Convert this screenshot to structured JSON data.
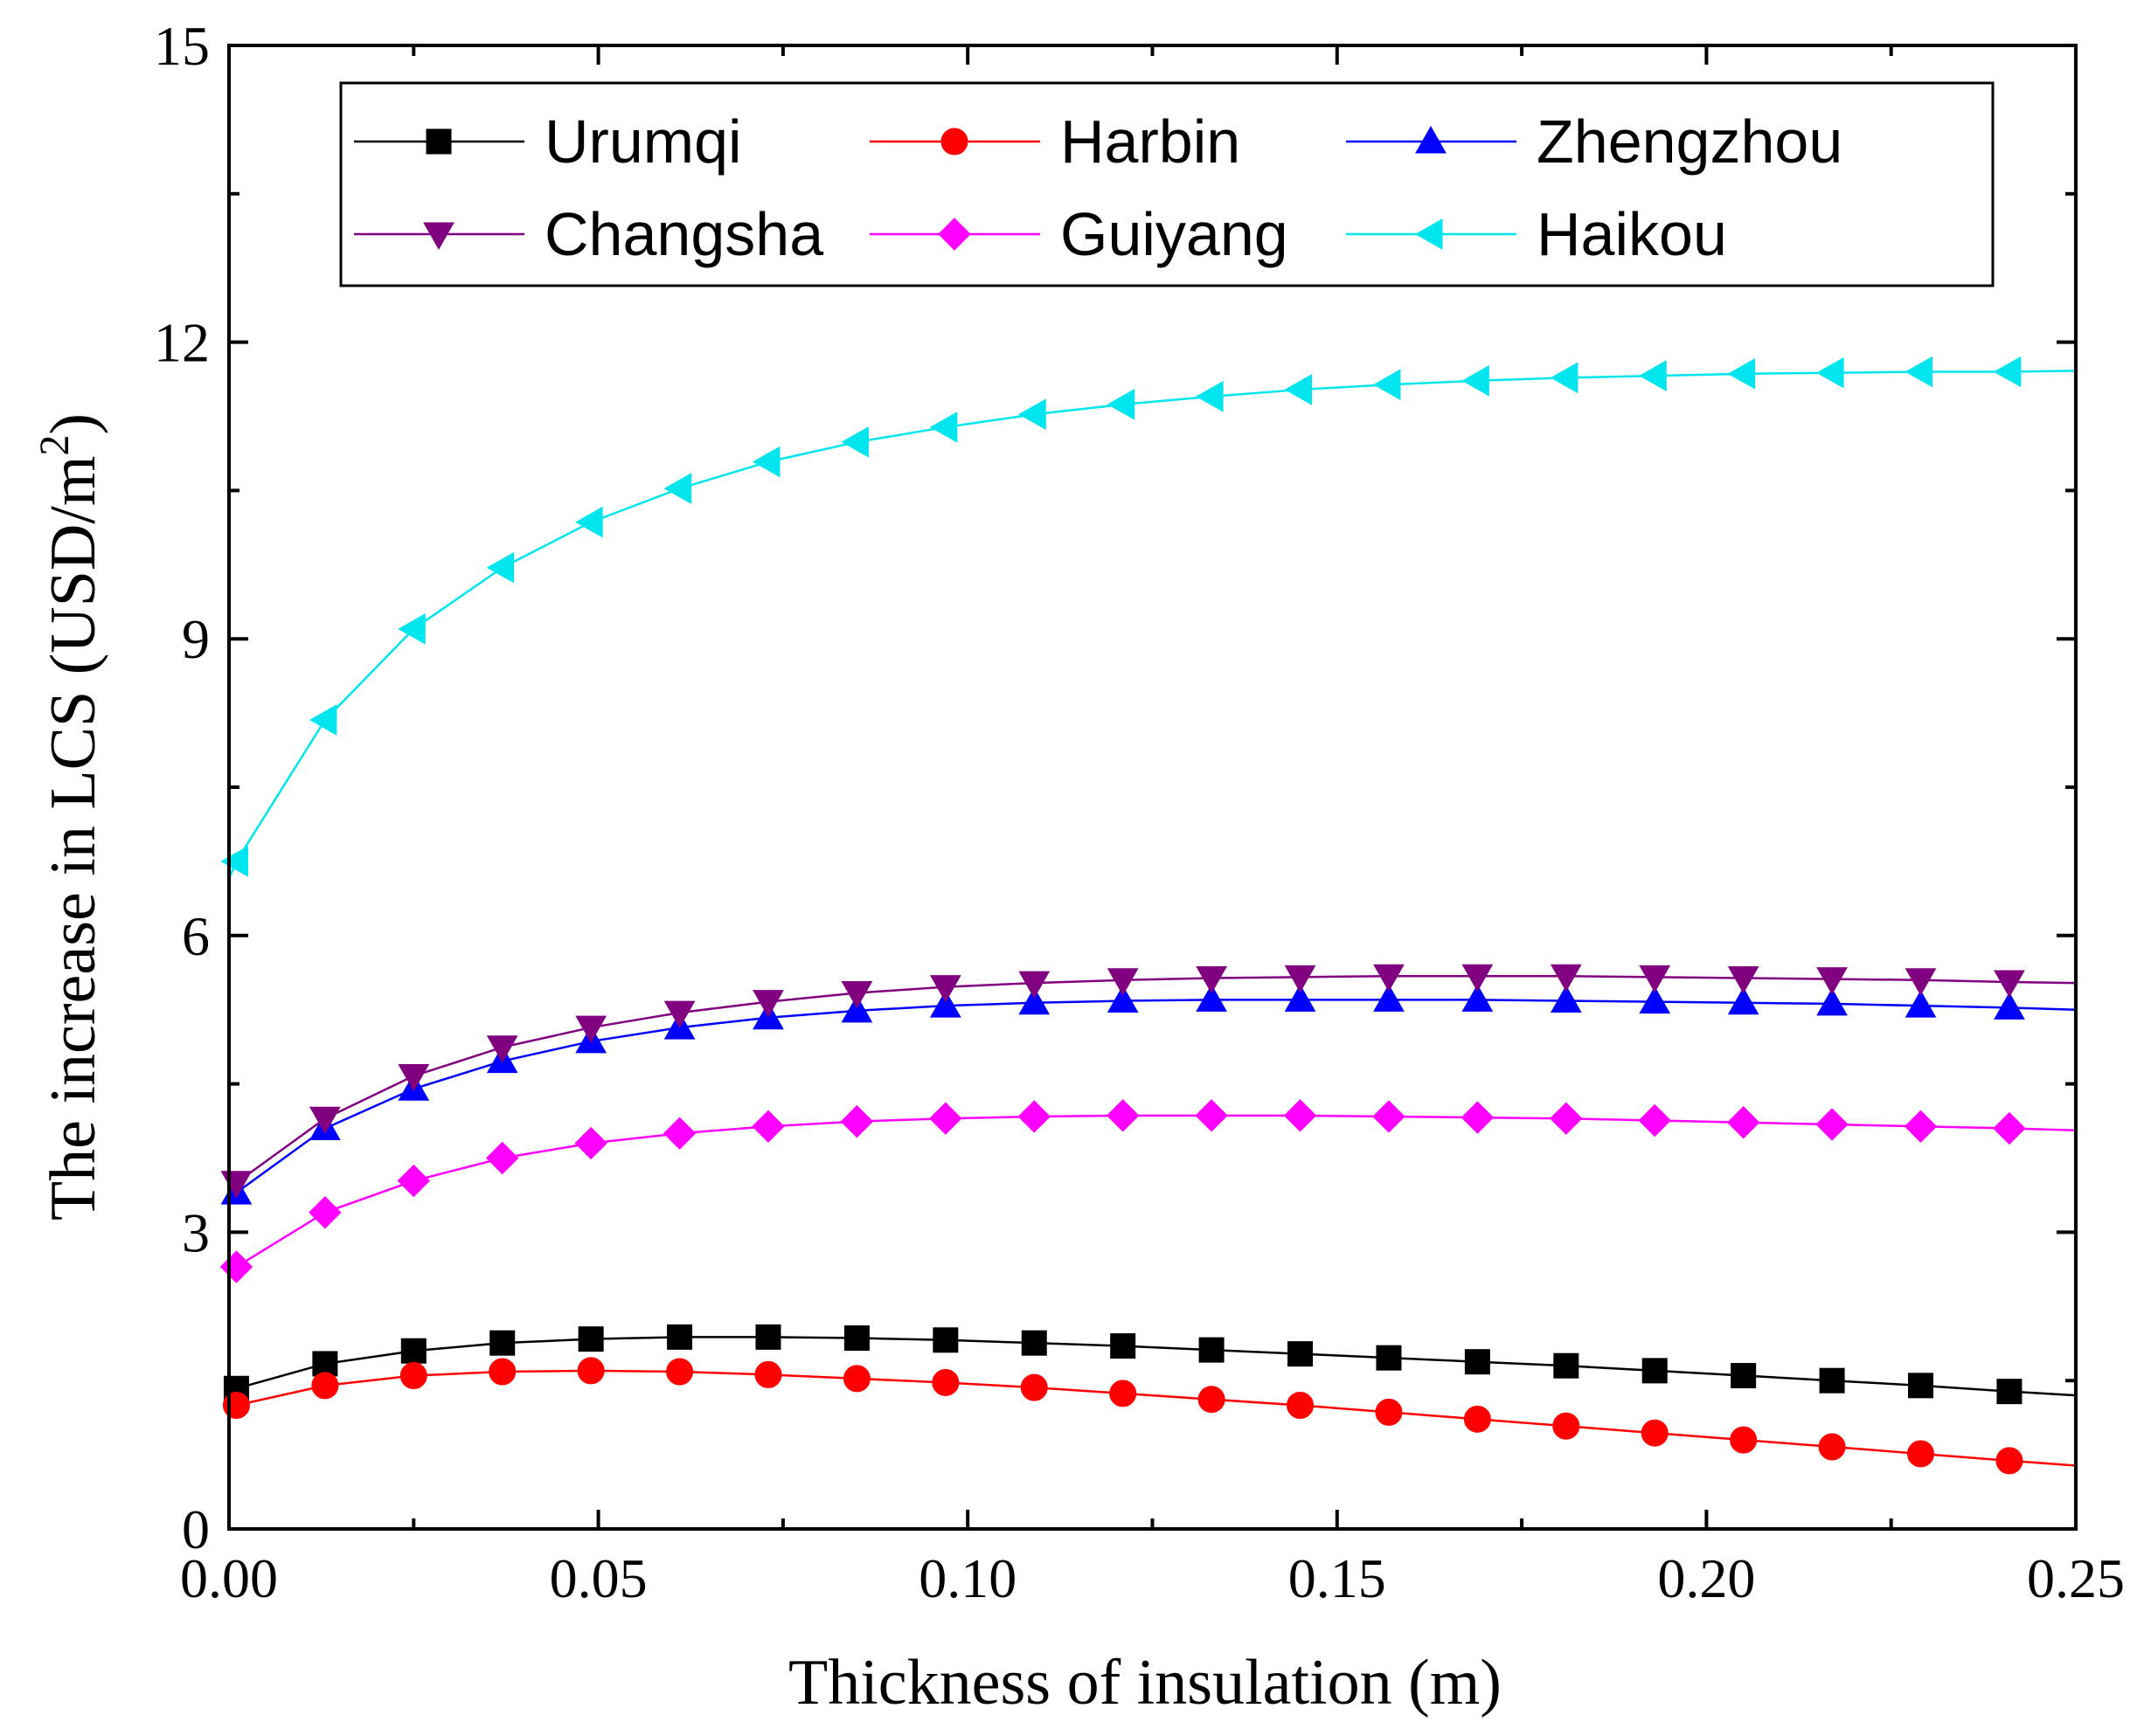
{
  "chart_data": {
    "type": "line",
    "title": "",
    "xlabel": "Thickness of insulation (m)",
    "ylabel": "The increase in LCS (USD/m",
    "ylabel_sup": "2",
    "ylabel_close": ")",
    "xlim": [
      0.0,
      0.25
    ],
    "ylim": [
      0,
      15
    ],
    "x_ticks": [
      0.0,
      0.05,
      0.1,
      0.15,
      0.2,
      0.25
    ],
    "x_tick_labels": [
      "0.00",
      "0.05",
      "0.10",
      "0.15",
      "0.20",
      "0.25"
    ],
    "y_ticks": [
      0,
      3,
      6,
      9,
      12,
      15
    ],
    "y_tick_labels": [
      "0",
      "3",
      "6",
      "9",
      "12",
      "15"
    ],
    "grid": false,
    "legend_position": "top",
    "x": [
      0.001,
      0.013,
      0.025,
      0.037,
      0.049,
      0.061,
      0.073,
      0.085,
      0.097,
      0.109,
      0.121,
      0.133,
      0.145,
      0.157,
      0.169,
      0.181,
      0.193,
      0.205,
      0.217,
      0.229,
      0.241
    ],
    "series": [
      {
        "name": "Urumqi",
        "color": "#000000",
        "marker": "square",
        "values": [
          1.42,
          1.67,
          1.8,
          1.88,
          1.92,
          1.94,
          1.94,
          1.93,
          1.91,
          1.88,
          1.85,
          1.81,
          1.77,
          1.73,
          1.69,
          1.65,
          1.6,
          1.55,
          1.5,
          1.45,
          1.39
        ],
        "end_value": 1.35
      },
      {
        "name": "Harbin",
        "color": "#ff0000",
        "marker": "circle",
        "values": [
          1.25,
          1.45,
          1.55,
          1.59,
          1.6,
          1.59,
          1.56,
          1.52,
          1.48,
          1.43,
          1.37,
          1.31,
          1.25,
          1.18,
          1.11,
          1.04,
          0.97,
          0.9,
          0.83,
          0.76,
          0.69
        ],
        "end_value": 0.64
      },
      {
        "name": "Zhengzhou",
        "color": "#0000ff",
        "marker": "triangle-up",
        "values": [
          3.4,
          4.05,
          4.45,
          4.73,
          4.93,
          5.07,
          5.17,
          5.24,
          5.29,
          5.32,
          5.34,
          5.35,
          5.35,
          5.35,
          5.35,
          5.34,
          5.33,
          5.32,
          5.31,
          5.29,
          5.27
        ],
        "end_value": 5.25
      },
      {
        "name": "Changsha",
        "color": "#800080",
        "marker": "triangle-down",
        "values": [
          3.5,
          4.15,
          4.58,
          4.87,
          5.07,
          5.22,
          5.33,
          5.42,
          5.48,
          5.52,
          5.55,
          5.57,
          5.58,
          5.59,
          5.59,
          5.59,
          5.58,
          5.57,
          5.56,
          5.55,
          5.53
        ],
        "end_value": 5.52
      },
      {
        "name": "Guiyang",
        "color": "#ff00ff",
        "marker": "diamond",
        "values": [
          2.65,
          3.2,
          3.52,
          3.75,
          3.9,
          4.0,
          4.07,
          4.12,
          4.15,
          4.17,
          4.18,
          4.18,
          4.18,
          4.17,
          4.16,
          4.15,
          4.13,
          4.11,
          4.09,
          4.07,
          4.05
        ],
        "end_value": 4.03
      },
      {
        "name": "Haikou",
        "color": "#00e5ee",
        "marker": "triangle-left",
        "values": [
          6.75,
          8.18,
          9.1,
          9.72,
          10.18,
          10.52,
          10.79,
          10.99,
          11.14,
          11.27,
          11.37,
          11.45,
          11.52,
          11.57,
          11.61,
          11.64,
          11.66,
          11.68,
          11.69,
          11.7,
          11.7
        ],
        "end_value": 11.71
      }
    ]
  }
}
